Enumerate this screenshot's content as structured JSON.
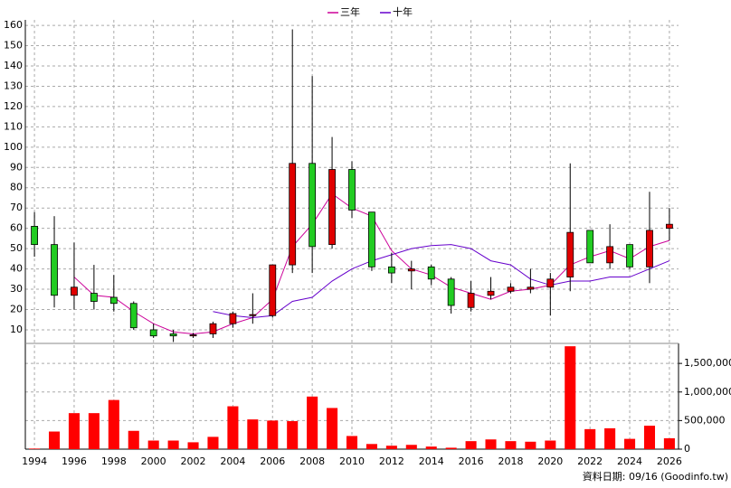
{
  "chart_data": {
    "type": "candlestick",
    "legend": "top",
    "grid": true,
    "up_color": "#e00000",
    "down_color": "#22cc22",
    "x": [
      1994,
      1995,
      1996,
      1997,
      1998,
      1999,
      2000,
      2001,
      2002,
      2003,
      2004,
      2005,
      2006,
      2007,
      2008,
      2009,
      2010,
      2011,
      2012,
      2013,
      2014,
      2015,
      2016,
      2017,
      2018,
      2019,
      2020,
      2021,
      2022,
      2023,
      2024,
      2025,
      2026
    ],
    "xlim": [
      1993.54,
      2026.46
    ],
    "xticks": [
      1994,
      1996,
      1998,
      2000,
      2002,
      2004,
      2006,
      2008,
      2010,
      2012,
      2014,
      2016,
      2018,
      2020,
      2022,
      2024,
      2026
    ],
    "ylim": [
      3.3,
      162.7
    ],
    "yticks": [
      10,
      20,
      30,
      40,
      50,
      60,
      70,
      80,
      90,
      100,
      110,
      120,
      130,
      140,
      150,
      160
    ],
    "open": [
      61,
      52,
      27,
      28,
      26,
      23,
      10,
      8,
      7,
      8,
      13,
      17,
      17,
      42,
      92,
      52,
      89,
      68,
      41,
      39,
      41,
      35,
      21,
      27,
      29,
      30,
      31,
      36,
      59,
      43,
      52,
      41,
      60
    ],
    "high": [
      68,
      66,
      53,
      42,
      37,
      24,
      13,
      10,
      8.5,
      14,
      19,
      28,
      42,
      158,
      135,
      105,
      93,
      68,
      48,
      44,
      42,
      36,
      34,
      36,
      33,
      40,
      38,
      92,
      59,
      62,
      52,
      78,
      70
    ],
    "low": [
      46,
      21,
      20,
      20,
      19,
      10,
      6,
      4,
      6,
      6,
      11,
      13,
      16,
      38,
      38,
      50,
      65,
      39,
      33,
      30,
      32,
      18,
      19,
      25,
      28,
      28,
      17,
      29,
      43,
      40,
      40,
      33,
      54
    ],
    "close": [
      52,
      27,
      31,
      24,
      23,
      11,
      7,
      7,
      7.5,
      13,
      18,
      17.5,
      42,
      92,
      51,
      89,
      69,
      41,
      38,
      40,
      35,
      22,
      28,
      29,
      31,
      31,
      35,
      58,
      43,
      51,
      41,
      59,
      62
    ],
    "series": [
      {
        "name": "三年",
        "color": "#cc0099",
        "values": [
          null,
          null,
          36,
          27,
          26,
          19,
          13,
          9,
          8,
          9,
          13,
          16,
          25,
          51,
          62,
          77,
          70,
          66,
          49,
          40,
          37,
          31,
          28,
          25,
          29,
          30,
          32,
          42,
          46,
          49,
          45,
          51,
          54
        ]
      },
      {
        "name": "十年",
        "color": "#6600cc",
        "values": [
          null,
          null,
          null,
          null,
          null,
          null,
          null,
          null,
          null,
          19,
          17,
          16,
          17,
          24,
          26,
          34,
          40,
          44,
          47,
          50,
          51.5,
          52,
          50,
          44,
          42,
          35,
          32,
          34,
          34,
          36,
          36,
          40,
          44
        ]
      }
    ],
    "y2lim": [
      0,
      1850000
    ],
    "y2ticks": [
      0,
      {
        "value": 500000,
        "label": "500,000"
      },
      {
        "value": 1000000,
        "label": "1,000,000"
      },
      {
        "value": 1500000,
        "label": "1,500,000"
      }
    ],
    "volume": {
      "axis": "y2",
      "color": "#ff0000",
      "values": [
        10000,
        308000,
        630000,
        630000,
        860000,
        320000,
        150000,
        150000,
        120000,
        215000,
        750000,
        520000,
        500000,
        490000,
        920000,
        720000,
        230000,
        90000,
        60000,
        75000,
        45000,
        25000,
        140000,
        170000,
        140000,
        130000,
        150000,
        1800000,
        350000,
        365000,
        180000,
        410000,
        190000
      ]
    },
    "footnote": "資料日期: 09/16 (Goodinfo.tw)"
  }
}
